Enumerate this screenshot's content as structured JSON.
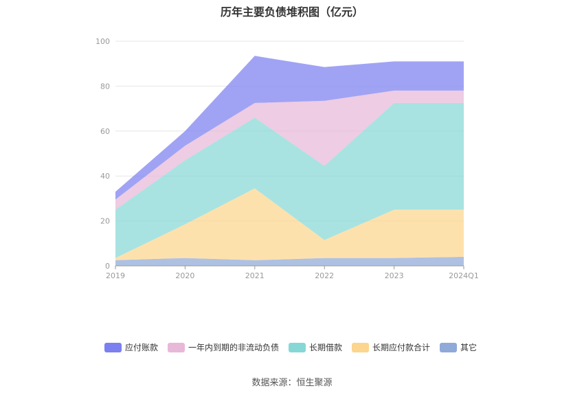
{
  "chart_data": {
    "type": "area",
    "title": "历年主要负债堆积图（亿元）",
    "stacked": true,
    "categories": [
      "2019",
      "2020",
      "2021",
      "2022",
      "2023",
      "2024Q1"
    ],
    "ylim": [
      0,
      100
    ],
    "yticks": [
      0,
      20,
      40,
      60,
      80,
      100
    ],
    "grid": true,
    "legend_position": "bottom",
    "series": [
      {
        "name": "其它",
        "color": "#8fa9d8",
        "values": [
          2.5,
          3.5,
          2.5,
          3.5,
          3.5,
          4.0
        ]
      },
      {
        "name": "长期应付款合计",
        "color": "#fcd58e",
        "values": [
          1.0,
          15.0,
          32.0,
          8.0,
          21.5,
          21.0
        ]
      },
      {
        "name": "长期借款",
        "color": "#86d8d6",
        "values": [
          21.5,
          28.5,
          31.5,
          33.0,
          47.5,
          47.5
        ]
      },
      {
        "name": "一年内到期的非流动负债",
        "color": "#e8b8d8",
        "values": [
          4.5,
          6.5,
          6.5,
          29.0,
          5.5,
          5.5
        ]
      },
      {
        "name": "应付账款",
        "color": "#7b7ff0",
        "values": [
          3.5,
          6.5,
          21.0,
          15.0,
          13.0,
          13.0
        ]
      }
    ]
  },
  "legend_order": [
    "应付账款",
    "一年内到期的非流动负债",
    "长期借款",
    "长期应付款合计",
    "其它"
  ],
  "source": "数据来源：恒生聚源"
}
